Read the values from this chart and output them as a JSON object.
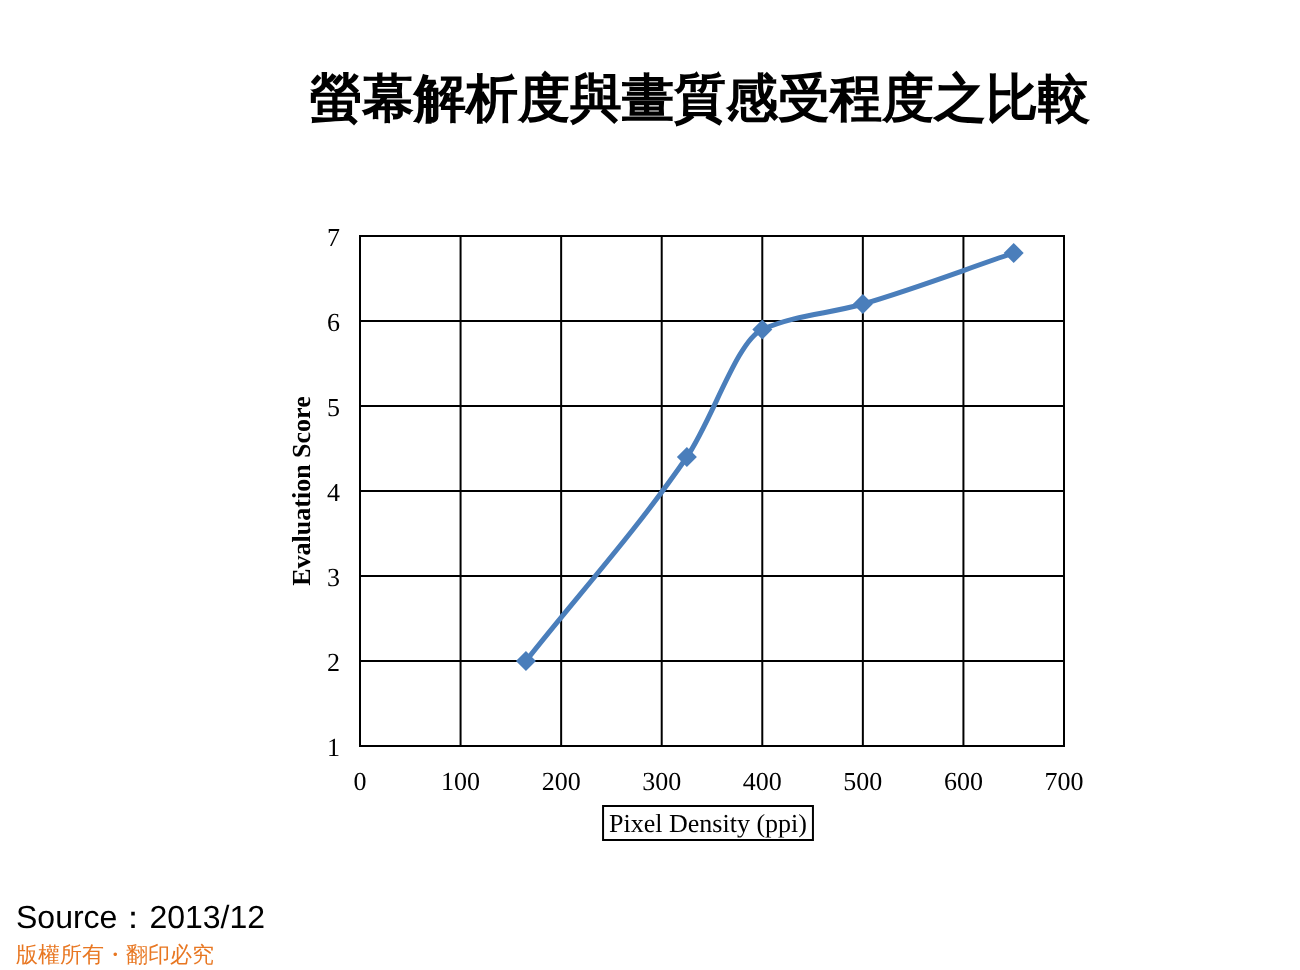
{
  "chart_data": {
    "type": "line",
    "title": "螢幕解析度與畫質感受程度之比較",
    "xlabel": "Pixel Density (ppi)",
    "ylabel": "Evaluation Score",
    "x": [
      165,
      325,
      400,
      500,
      650
    ],
    "series": [
      {
        "color": "#4a7ebb",
        "values": [
          2,
          4.4,
          5.9,
          6.2,
          6.8
        ]
      }
    ],
    "xlim": [
      0,
      700
    ],
    "xticks": [
      0,
      100,
      200,
      300,
      400,
      500,
      600,
      700
    ],
    "ylim": [
      1,
      7
    ],
    "yticks": [
      1,
      2,
      3,
      4,
      5,
      6,
      7
    ],
    "grid": true,
    "marker": "diamond",
    "line_style": "solid",
    "annotations": [
      "Source：2013/12",
      "版權所有・翻印必究"
    ]
  }
}
